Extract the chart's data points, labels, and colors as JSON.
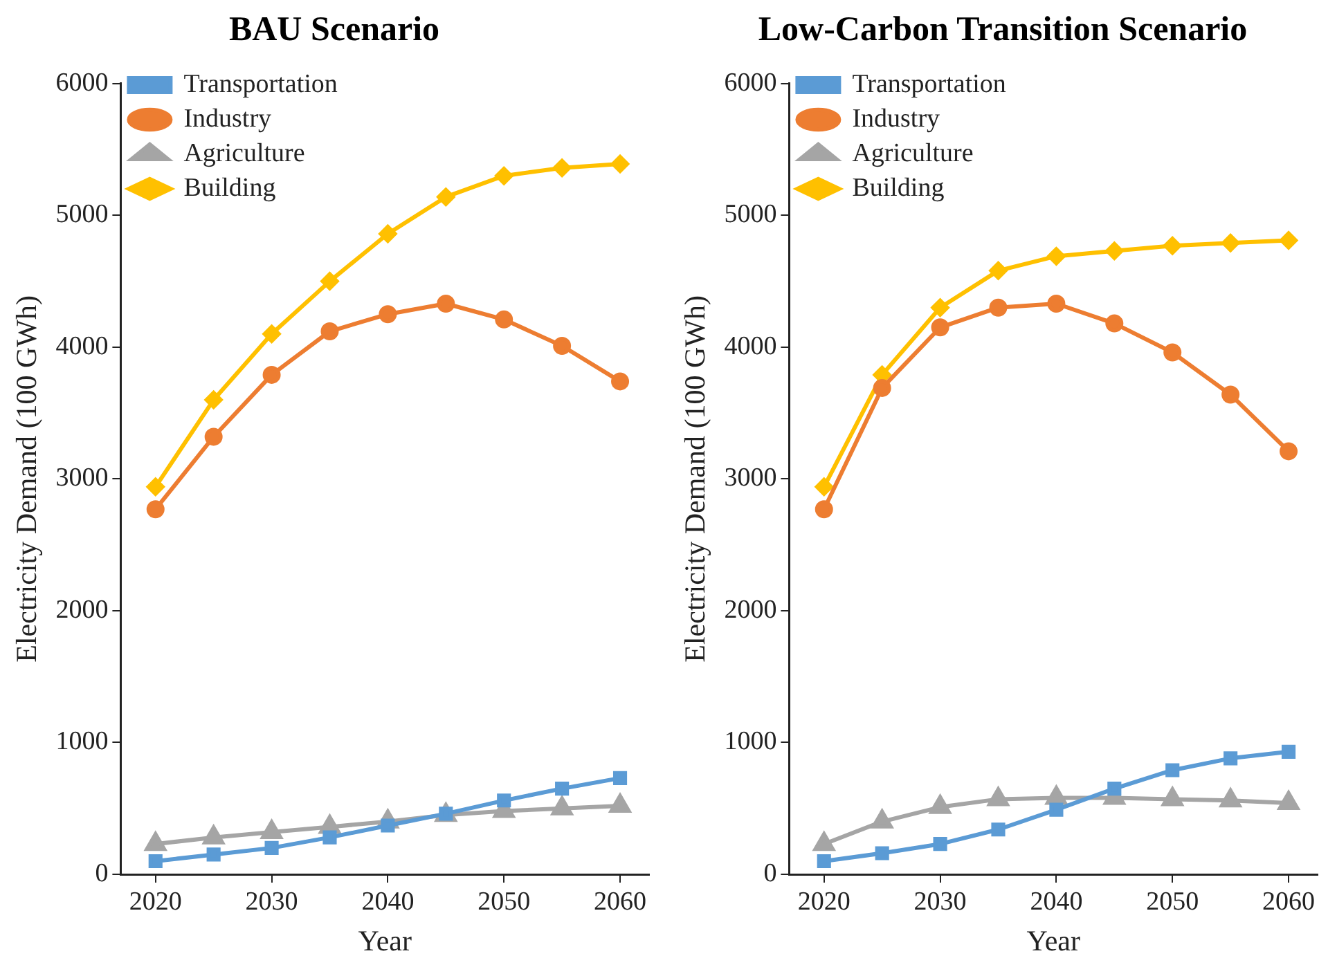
{
  "chart_data": [
    {
      "type": "line",
      "title": "BAU Scenario",
      "xlabel": "Year",
      "ylabel": "Electricity Demand (100 GWh)",
      "x": [
        2020,
        2025,
        2030,
        2035,
        2040,
        2045,
        2050,
        2055,
        2060
      ],
      "xlim": [
        2017,
        2062.5
      ],
      "xticks": [
        2020,
        2030,
        2040,
        2050,
        2060
      ],
      "ylim": [
        0,
        6000
      ],
      "yticks": [
        0,
        1000,
        2000,
        3000,
        4000,
        5000,
        6000
      ],
      "grid": false,
      "legend": "top left",
      "line_style": "solid",
      "series": [
        {
          "name": "Transportation",
          "color": "#5b9bd5",
          "marker": "square",
          "values": [
            100,
            150,
            200,
            280,
            370,
            460,
            560,
            650,
            730
          ]
        },
        {
          "name": "Industry",
          "color": "#ed7d31",
          "marker": "circle",
          "values": [
            2770,
            3320,
            3790,
            4120,
            4250,
            4330,
            4210,
            4010,
            3740
          ]
        },
        {
          "name": "Agriculture",
          "color": "#a5a5a5",
          "marker": "triangle",
          "values": [
            230,
            280,
            320,
            360,
            400,
            450,
            480,
            500,
            520
          ]
        },
        {
          "name": "Building",
          "color": "#ffc000",
          "marker": "diamond",
          "values": [
            2940,
            3600,
            4100,
            4500,
            4860,
            5140,
            5300,
            5360,
            5390
          ]
        }
      ]
    },
    {
      "type": "line",
      "title": "Low-Carbon Transition Scenario",
      "xlabel": "Year",
      "ylabel": "Electricity Demand (100 GWh)",
      "x": [
        2020,
        2025,
        2030,
        2035,
        2040,
        2045,
        2050,
        2055,
        2060
      ],
      "xlim": [
        2017,
        2062.5
      ],
      "xticks": [
        2020,
        2030,
        2040,
        2050,
        2060
      ],
      "ylim": [
        0,
        6000
      ],
      "yticks": [
        0,
        1000,
        2000,
        3000,
        4000,
        5000,
        6000
      ],
      "grid": false,
      "legend": "top left",
      "line_style": "solid",
      "series": [
        {
          "name": "Transportation",
          "color": "#5b9bd5",
          "marker": "square",
          "values": [
            100,
            160,
            230,
            340,
            490,
            650,
            790,
            880,
            930
          ]
        },
        {
          "name": "Industry",
          "color": "#ed7d31",
          "marker": "circle",
          "values": [
            2770,
            3690,
            4150,
            4300,
            4330,
            4180,
            3960,
            3640,
            3210
          ]
        },
        {
          "name": "Agriculture",
          "color": "#a5a5a5",
          "marker": "triangle",
          "values": [
            230,
            400,
            510,
            570,
            580,
            580,
            570,
            560,
            540
          ]
        },
        {
          "name": "Building",
          "color": "#ffc000",
          "marker": "diamond",
          "values": [
            2940,
            3790,
            4300,
            4580,
            4690,
            4730,
            4770,
            4790,
            4810
          ]
        }
      ]
    }
  ]
}
